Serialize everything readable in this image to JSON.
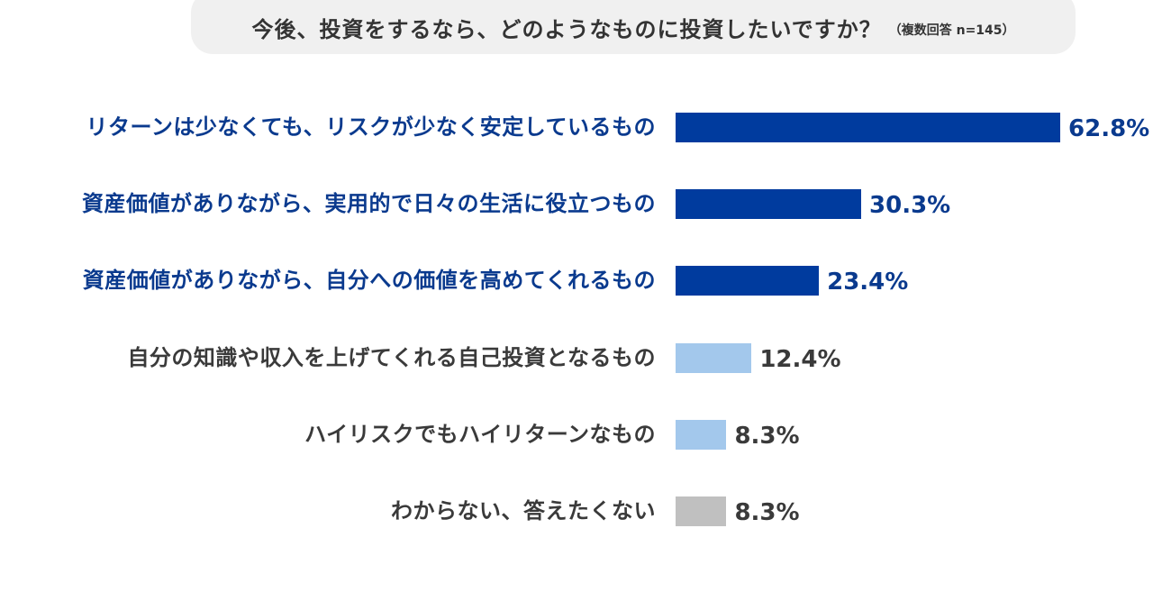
{
  "title": {
    "main": "今後、投資をするなら、どのようなものに投資したいですか？",
    "note": "（複数回答 n=145）"
  },
  "colors": {
    "dark_blue": "#003b9e",
    "light_blue": "#a3c8ec",
    "gray": "#c0c0c0",
    "label_blue": "#0a3a8e",
    "label_dark": "#3a3a3a",
    "title_bg": "#f0f0f0"
  },
  "rows": [
    {
      "label": "リターンは少なくても、リスクが少なく安定しているもの",
      "value": "62.8%"
    },
    {
      "label": "資産価値がありながら、実用的で日々の生活に役立つもの",
      "value": "30.3%"
    },
    {
      "label": "資産価値がありながら、自分への価値を高めてくれるもの",
      "value": "23.4%"
    },
    {
      "label": "自分の知識や収入を上げてくれる自己投資となるもの",
      "value": "12.4%"
    },
    {
      "label": "ハイリスクでもハイリターンなもの",
      "value": "8.3%"
    },
    {
      "label": "わからない、答えたくない",
      "value": "8.3%"
    }
  ],
  "chart_data": {
    "type": "bar",
    "orientation": "horizontal",
    "title": "今後、投資をするなら、どのようなものに投資したいですか？（複数回答 n=145）",
    "xlabel": "",
    "ylabel": "",
    "unit": "%",
    "grid": false,
    "legend": null,
    "categories": [
      "リターンは少なくても、リスクが少なく安定しているもの",
      "資産価値がありながら、実用的で日々の生活に役立つもの",
      "資産価値がありながら、自分への価値を高めてくれるもの",
      "自分の知識や収入を上げてくれる自己投資となるもの",
      "ハイリスクでもハイリターンなもの",
      "わからない、答えたくない"
    ],
    "values": [
      62.8,
      30.3,
      23.4,
      12.4,
      8.3,
      8.3
    ],
    "bar_colors": [
      "#003b9e",
      "#003b9e",
      "#003b9e",
      "#a3c8ec",
      "#a3c8ec",
      "#c0c0c0"
    ],
    "xlim": [
      0,
      70
    ]
  }
}
